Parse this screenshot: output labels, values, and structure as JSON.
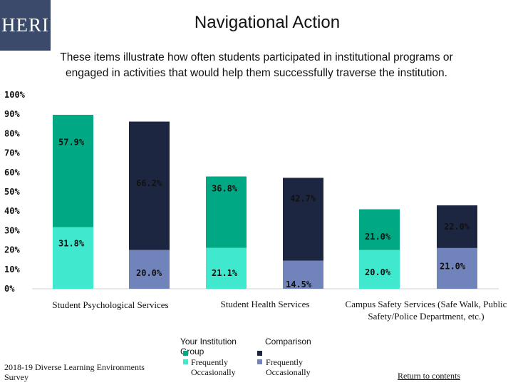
{
  "logo": {
    "text": "HERI"
  },
  "header": {
    "title": "Navigational Action",
    "subtitle": "These items illustrate how often students participated in institutional programs or engaged in activities that would help them successfully traverse the institution."
  },
  "colors": {
    "your_frequently": "#00a884",
    "your_occasionally": "#40e8cd",
    "comparison_frequently": "#1c2640",
    "comparison_occasionally": "#7083ba"
  },
  "chart_data": {
    "type": "bar",
    "stacked": true,
    "categories": [
      "Student Psychological Services",
      "Student Health Services",
      "Campus Safety Services (Safe Walk, Public Safety/Police Department, etc.)"
    ],
    "groups": [
      "Your Institution Group",
      "Comparison"
    ],
    "segments": [
      "Frequently",
      "Occasionally"
    ],
    "series": [
      {
        "group": "Your Institution Group",
        "segment": "Occasionally",
        "values": [
          31.8,
          21.1,
          20.0
        ]
      },
      {
        "group": "Your Institution Group",
        "segment": "Frequently",
        "values": [
          57.9,
          36.8,
          21.0
        ]
      },
      {
        "group": "Comparison",
        "segment": "Occasionally",
        "values": [
          20.0,
          14.5,
          21.0
        ]
      },
      {
        "group": "Comparison",
        "segment": "Frequently",
        "values": [
          66.2,
          42.7,
          22.0
        ]
      }
    ],
    "data_labels": {
      "your_occasionally": [
        "31.8%",
        "21.1%",
        "20.0%"
      ],
      "your_frequently": [
        "57.9%",
        "36.8%",
        "21.0%"
      ],
      "comparison_occasionally": [
        "20.0%",
        "14.5%",
        "21.0%"
      ],
      "comparison_frequently": [
        "66.2%",
        "42.7%",
        "22.0%"
      ]
    },
    "ylim": [
      0,
      100
    ],
    "yticks": [
      "0%",
      "10%",
      "20%",
      "30%",
      "40%",
      "50%",
      "60%",
      "70%",
      "80%",
      "90%",
      "100%"
    ],
    "grid": false,
    "legend_position": "bottom-center"
  },
  "legend": {
    "your_group": "Your Institution Group",
    "comparison": "Comparison",
    "frequently": "Frequently",
    "occasionally": "Occasionally"
  },
  "footer": {
    "survey": "2018-19 Diverse Learning Environments Survey",
    "return_link": "Return to contents"
  }
}
